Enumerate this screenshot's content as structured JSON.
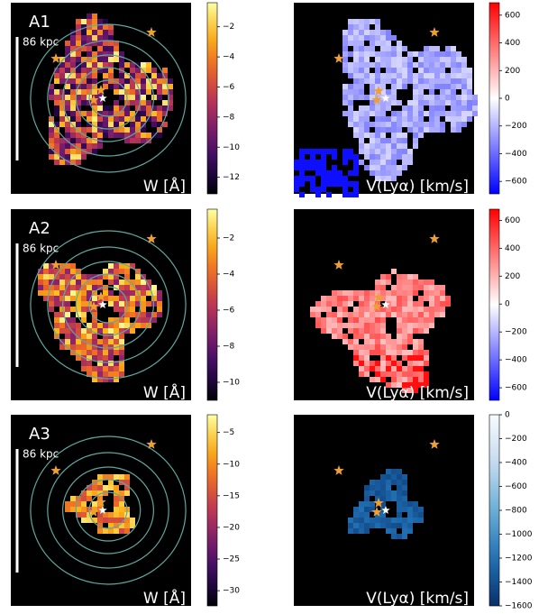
{
  "chart_data": [
    {
      "type": "image",
      "label": "A1",
      "scale_label": "86 kpc",
      "quantity": "W [Å]",
      "colorbar": {
        "cmap": "inferno",
        "lim": [
          -13.1,
          -0.4
        ],
        "ticks": [
          {
            "value": -2,
            "label": "−2"
          },
          {
            "value": -4,
            "label": "−4"
          },
          {
            "value": -6,
            "label": "−6"
          },
          {
            "value": -8,
            "label": "−8"
          },
          {
            "value": -10,
            "label": "−10"
          },
          {
            "value": -12,
            "label": "−12"
          }
        ]
      }
    },
    {
      "type": "image",
      "quantity": "V(Lyα) [km/s]",
      "colorbar": {
        "cmap": "bwr",
        "lim": [
          -690,
          690
        ],
        "ticks": [
          {
            "value": -600,
            "label": "−600"
          },
          {
            "value": -400,
            "label": "−400"
          },
          {
            "value": -200,
            "label": "−200"
          },
          0,
          200,
          400,
          600
        ]
      }
    },
    {
      "type": "image",
      "label": "A2",
      "scale_label": "86 kpc",
      "quantity": "W [Å]",
      "colorbar": {
        "cmap": "inferno",
        "lim": [
          -11,
          -0.4
        ],
        "ticks": [
          {
            "value": -2,
            "label": "−2"
          },
          {
            "value": -4,
            "label": "−4"
          },
          {
            "value": -6,
            "label": "−6"
          },
          {
            "value": -8,
            "label": "−8"
          },
          {
            "value": -10,
            "label": "−10"
          }
        ]
      }
    },
    {
      "type": "image",
      "quantity": "V(Lyα) [km/s]",
      "colorbar": {
        "cmap": "bwr",
        "lim": [
          -690,
          680
        ],
        "ticks": [
          {
            "value": -600,
            "label": "−600"
          },
          {
            "value": -400,
            "label": "−400"
          },
          {
            "value": -200,
            "label": "−200"
          },
          0,
          200,
          400,
          600
        ]
      }
    },
    {
      "type": "image",
      "label": "A3",
      "scale_label": "86 kpc",
      "quantity": "W [Å]",
      "colorbar": {
        "cmap": "inferno",
        "lim": [
          -32.4,
          -2.2
        ],
        "ticks": [
          {
            "value": -5,
            "label": "−5"
          },
          {
            "value": -10,
            "label": "−10"
          },
          {
            "value": -15,
            "label": "−15"
          },
          {
            "value": -20,
            "label": "−20"
          },
          {
            "value": -25,
            "label": "−25"
          },
          {
            "value": -30,
            "label": "−30"
          }
        ]
      }
    },
    {
      "type": "image",
      "quantity": "V(Lyα) [km/s]",
      "colorbar": {
        "cmap": "blues_r",
        "lim": [
          -1600,
          0
        ],
        "ticks": [
          {
            "value": -1600,
            "label": "−1600"
          },
          {
            "value": -1400,
            "label": "−1400"
          },
          {
            "value": -1200,
            "label": "−1200"
          },
          {
            "value": -1000,
            "label": "−1000"
          },
          {
            "value": -800,
            "label": "−800"
          },
          {
            "value": -600,
            "label": "−600"
          },
          {
            "value": -400,
            "label": "−400"
          },
          {
            "value": -200,
            "label": "−200"
          },
          0
        ]
      }
    }
  ]
}
